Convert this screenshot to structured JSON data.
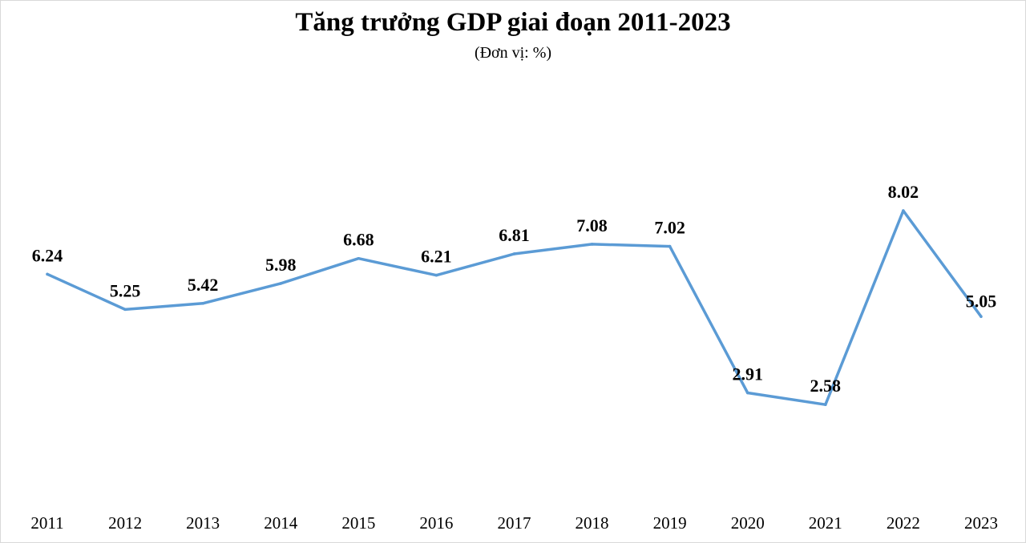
{
  "chart_data": {
    "type": "line",
    "title": "Tăng trưởng GDP giai đoạn 2011-2023",
    "subtitle": "(Đơn vị: %)",
    "categories": [
      "2011",
      "2012",
      "2013",
      "2014",
      "2015",
      "2016",
      "2017",
      "2018",
      "2019",
      "2020",
      "2021",
      "2022",
      "2023"
    ],
    "series": [
      {
        "values": [
          6.24,
          5.25,
          5.42,
          5.98,
          6.68,
          6.21,
          6.81,
          7.08,
          7.02,
          2.91,
          2.58,
          8.02,
          5.05
        ]
      }
    ],
    "data_labels": [
      "6.24",
      "5.25",
      "5.42",
      "5.98",
      "6.68",
      "6.21",
      "6.81",
      "7.08",
      "7.02",
      "2.91",
      "2.58",
      "8.02",
      "5.05"
    ],
    "ylim": [
      0,
      10
    ],
    "grid": false,
    "legend": "none",
    "line_color": "#5b9bd5"
  }
}
